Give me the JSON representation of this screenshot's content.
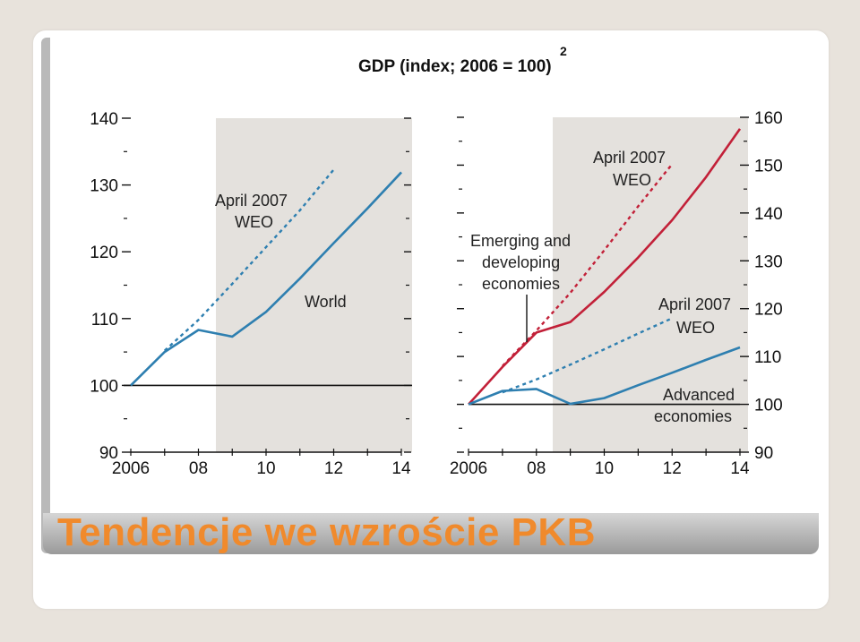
{
  "slide": {
    "title": "Tendencje we wzroście PKB"
  },
  "chart_heading": {
    "text": "GDP (index; 2006 = 100)",
    "footnote_mark": "2"
  },
  "colors": {
    "shade": "#e4e1dd",
    "blue": "#2e7fb0",
    "red": "#c22038",
    "title_orange": "#f08a2c"
  },
  "chart_data": [
    {
      "type": "line",
      "panel": "left",
      "x_ticks": [
        "2006",
        "08",
        "10",
        "12",
        "14"
      ],
      "x_tick_values": [
        2006,
        2008,
        2010,
        2012,
        2014
      ],
      "y_ticks": [
        "90",
        "100",
        "110",
        "120",
        "130",
        "140"
      ],
      "y_tick_values": [
        90,
        100,
        110,
        120,
        130,
        140
      ],
      "xlim": [
        2006,
        2014
      ],
      "ylim": [
        90,
        140
      ],
      "y_axis_side": "left",
      "baseline": 100,
      "shaded_x_range": [
        2008.5,
        2014.2
      ],
      "series": [
        {
          "name": "World",
          "style": "solid",
          "color": "#2e7fb0",
          "x": [
            2006,
            2007,
            2008,
            2009,
            2010,
            2011,
            2012,
            2013,
            2014
          ],
          "y": [
            100,
            105,
            108.3,
            107.3,
            111,
            116,
            121.3,
            126.5,
            131.9
          ]
        },
        {
          "name": "April 2007 WEO",
          "style": "dashed",
          "color": "#2e7fb0",
          "x": [
            2007,
            2008,
            2009,
            2010,
            2011,
            2012
          ],
          "y": [
            105.2,
            109.8,
            115.2,
            120.7,
            126.2,
            132.3
          ]
        }
      ],
      "annotations": [
        {
          "text_lines": [
            "April 2007",
            "WEO"
          ],
          "near_series": "April 2007 WEO"
        },
        {
          "text_lines": [
            "World"
          ],
          "near_series": "World"
        }
      ]
    },
    {
      "type": "line",
      "panel": "right",
      "x_ticks": [
        "2006",
        "08",
        "10",
        "12",
        "14"
      ],
      "x_tick_values": [
        2006,
        2008,
        2010,
        2012,
        2014
      ],
      "y_ticks": [
        "90",
        "100",
        "110",
        "120",
        "130",
        "140",
        "150",
        "160"
      ],
      "y_tick_values": [
        90,
        100,
        110,
        120,
        130,
        140,
        150,
        160
      ],
      "xlim": [
        2006,
        2014
      ],
      "ylim": [
        90,
        160
      ],
      "y_axis_side": "right",
      "baseline": 100,
      "shaded_x_range": [
        2008.5,
        2014.2
      ],
      "series": [
        {
          "name": "Emerging and developing economies",
          "style": "solid",
          "color": "#c22038",
          "x": [
            2006,
            2007,
            2008,
            2009,
            2010,
            2011,
            2012,
            2013,
            2014
          ],
          "y": [
            100,
            107.8,
            115,
            117.2,
            123.5,
            130.7,
            138.5,
            147.5,
            157.6
          ]
        },
        {
          "name": "April 2007 WEO",
          "style": "dashed",
          "color": "#c22038",
          "x": [
            2007,
            2008,
            2009,
            2010,
            2011,
            2012
          ],
          "y": [
            108,
            115.4,
            123.3,
            132.2,
            141.4,
            150.2
          ]
        },
        {
          "name": "Advanced economies",
          "style": "solid",
          "color": "#2e7fb0",
          "x": [
            2006,
            2007,
            2008,
            2009,
            2010,
            2011,
            2012,
            2013,
            2014
          ],
          "y": [
            100,
            102.8,
            103.2,
            100.1,
            101.3,
            104,
            106.6,
            109.3,
            111.9
          ]
        },
        {
          "name": "April 2007 WEO",
          "style": "dashed",
          "color": "#2e7fb0",
          "x": [
            2007,
            2008,
            2009,
            2010,
            2011,
            2012
          ],
          "y": [
            102.5,
            105.2,
            108.3,
            111.5,
            114.8,
            118
          ]
        }
      ],
      "annotations": [
        {
          "text_lines": [
            "April 2007",
            "WEO"
          ],
          "near_series": "April 2007 WEO (red)"
        },
        {
          "text_lines": [
            "Emerging and",
            "developing",
            "economies"
          ],
          "near_series": "Emerging and developing economies"
        },
        {
          "text_lines": [
            "April 2007",
            "WEO"
          ],
          "near_series": "April 2007 WEO (blue)"
        },
        {
          "text_lines": [
            "Advanced",
            "economies"
          ],
          "near_series": "Advanced economies"
        }
      ]
    }
  ],
  "annotation_text": {
    "left_weo_1": "April 2007",
    "left_weo_2": "WEO",
    "left_world": "World",
    "right_weo_red_1": "April 2007",
    "right_weo_red_2": "WEO",
    "right_emerging_1": "Emerging and",
    "right_emerging_2": "developing",
    "right_emerging_3": "economies",
    "right_weo_blue_1": "April 2007",
    "right_weo_blue_2": "WEO",
    "right_advanced_1": "Advanced",
    "right_advanced_2": "economies"
  }
}
